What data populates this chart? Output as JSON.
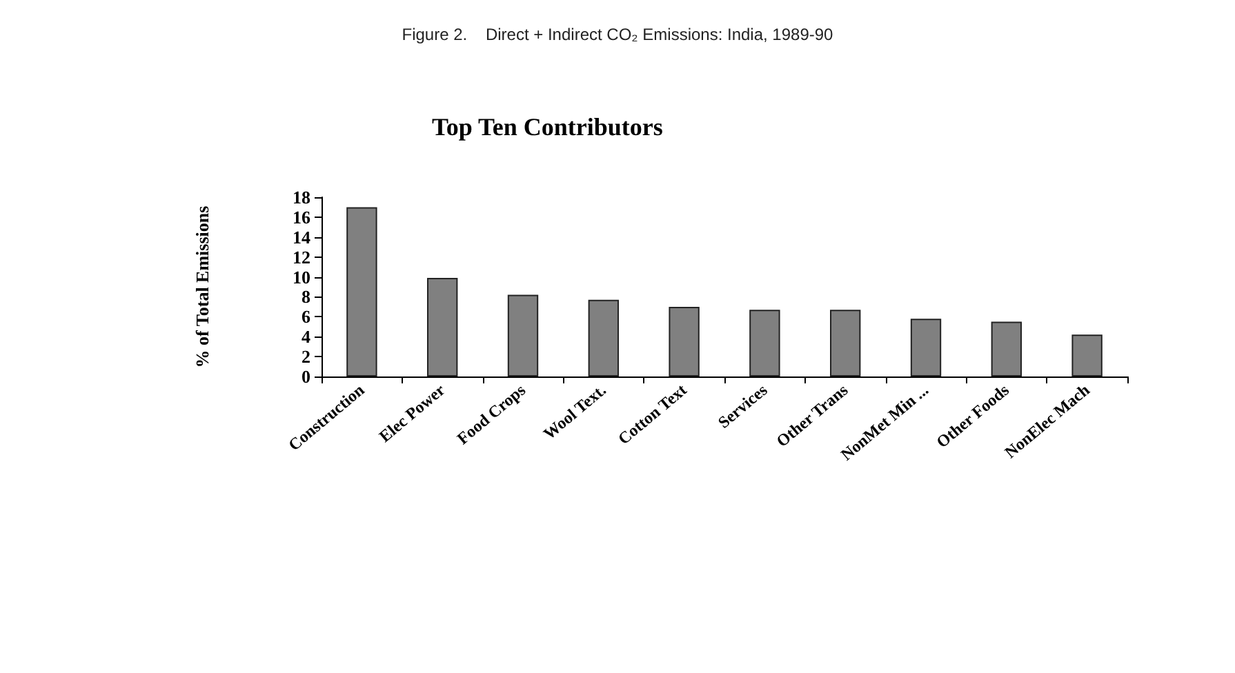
{
  "chart_data": {
    "type": "bar",
    "title": "Figure 2.    Direct + Indirect CO₂ Emissions: India, 1989-90",
    "subtitle": "Top Ten Contributors",
    "ylabel": "% of Total Emissions",
    "categories": [
      "Construction",
      "Elec Power",
      "Food Crops",
      "Wool Text.",
      "Cotton Text",
      "Services",
      "Other Trans",
      "NonMet Min ...",
      "Other Foods",
      "NonElec Mach"
    ],
    "values": [
      17,
      9.9,
      8.2,
      7.7,
      7,
      6.7,
      6.7,
      5.8,
      5.5,
      4.2
    ],
    "color": "#808080",
    "ylim": [
      0,
      18
    ],
    "yticks": [
      0,
      2,
      4,
      6,
      8,
      10,
      12,
      14,
      16,
      18
    ],
    "grid": false
  }
}
